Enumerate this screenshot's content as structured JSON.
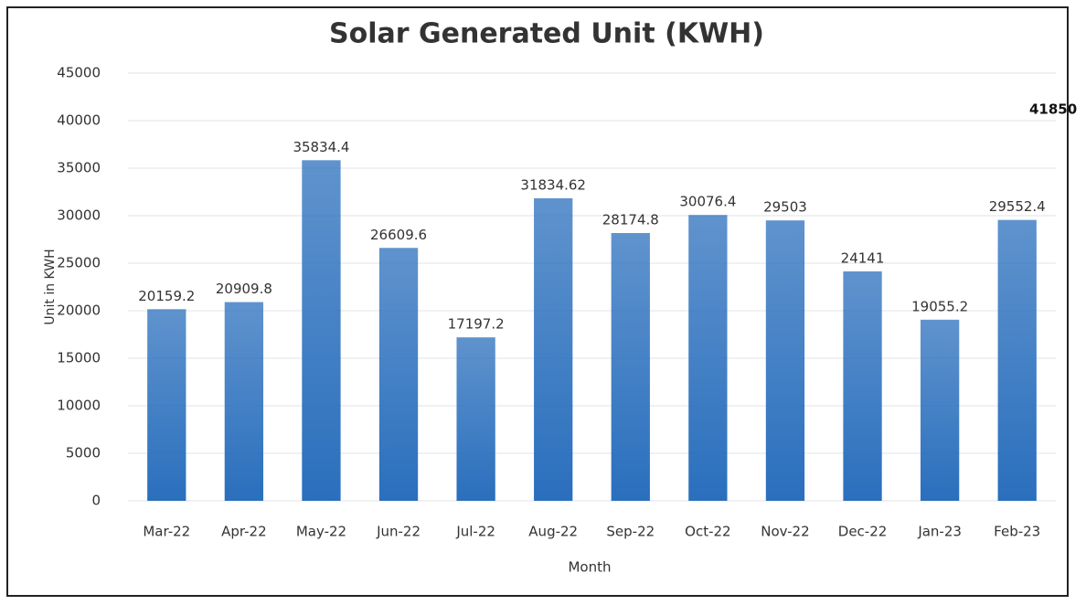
{
  "chart_data": {
    "type": "bar",
    "title": "Solar Generated Unit (KWH)",
    "x_label": "Month",
    "y_label": "Unit in KWH",
    "categories": [
      "Mar-22",
      "Apr-22",
      "May-22",
      "Jun-22",
      "Jul-22",
      "Aug-22",
      "Sep-22",
      "Oct-22",
      "Nov-22",
      "Dec-22",
      "Jan-23",
      "Feb-23"
    ],
    "values": [
      20159.2,
      20909.8,
      35834.4,
      26609.6,
      17197.2,
      31834.62,
      28174.8,
      30076.4,
      29503,
      24141,
      19055.2,
      29552.4
    ],
    "color": "#2a6fbd",
    "ylim": [
      0,
      45000
    ],
    "yticks": [
      0,
      5000,
      10000,
      15000,
      20000,
      25000,
      30000,
      35000,
      40000,
      45000
    ],
    "grid": true,
    "annotations": [
      "41850"
    ]
  }
}
